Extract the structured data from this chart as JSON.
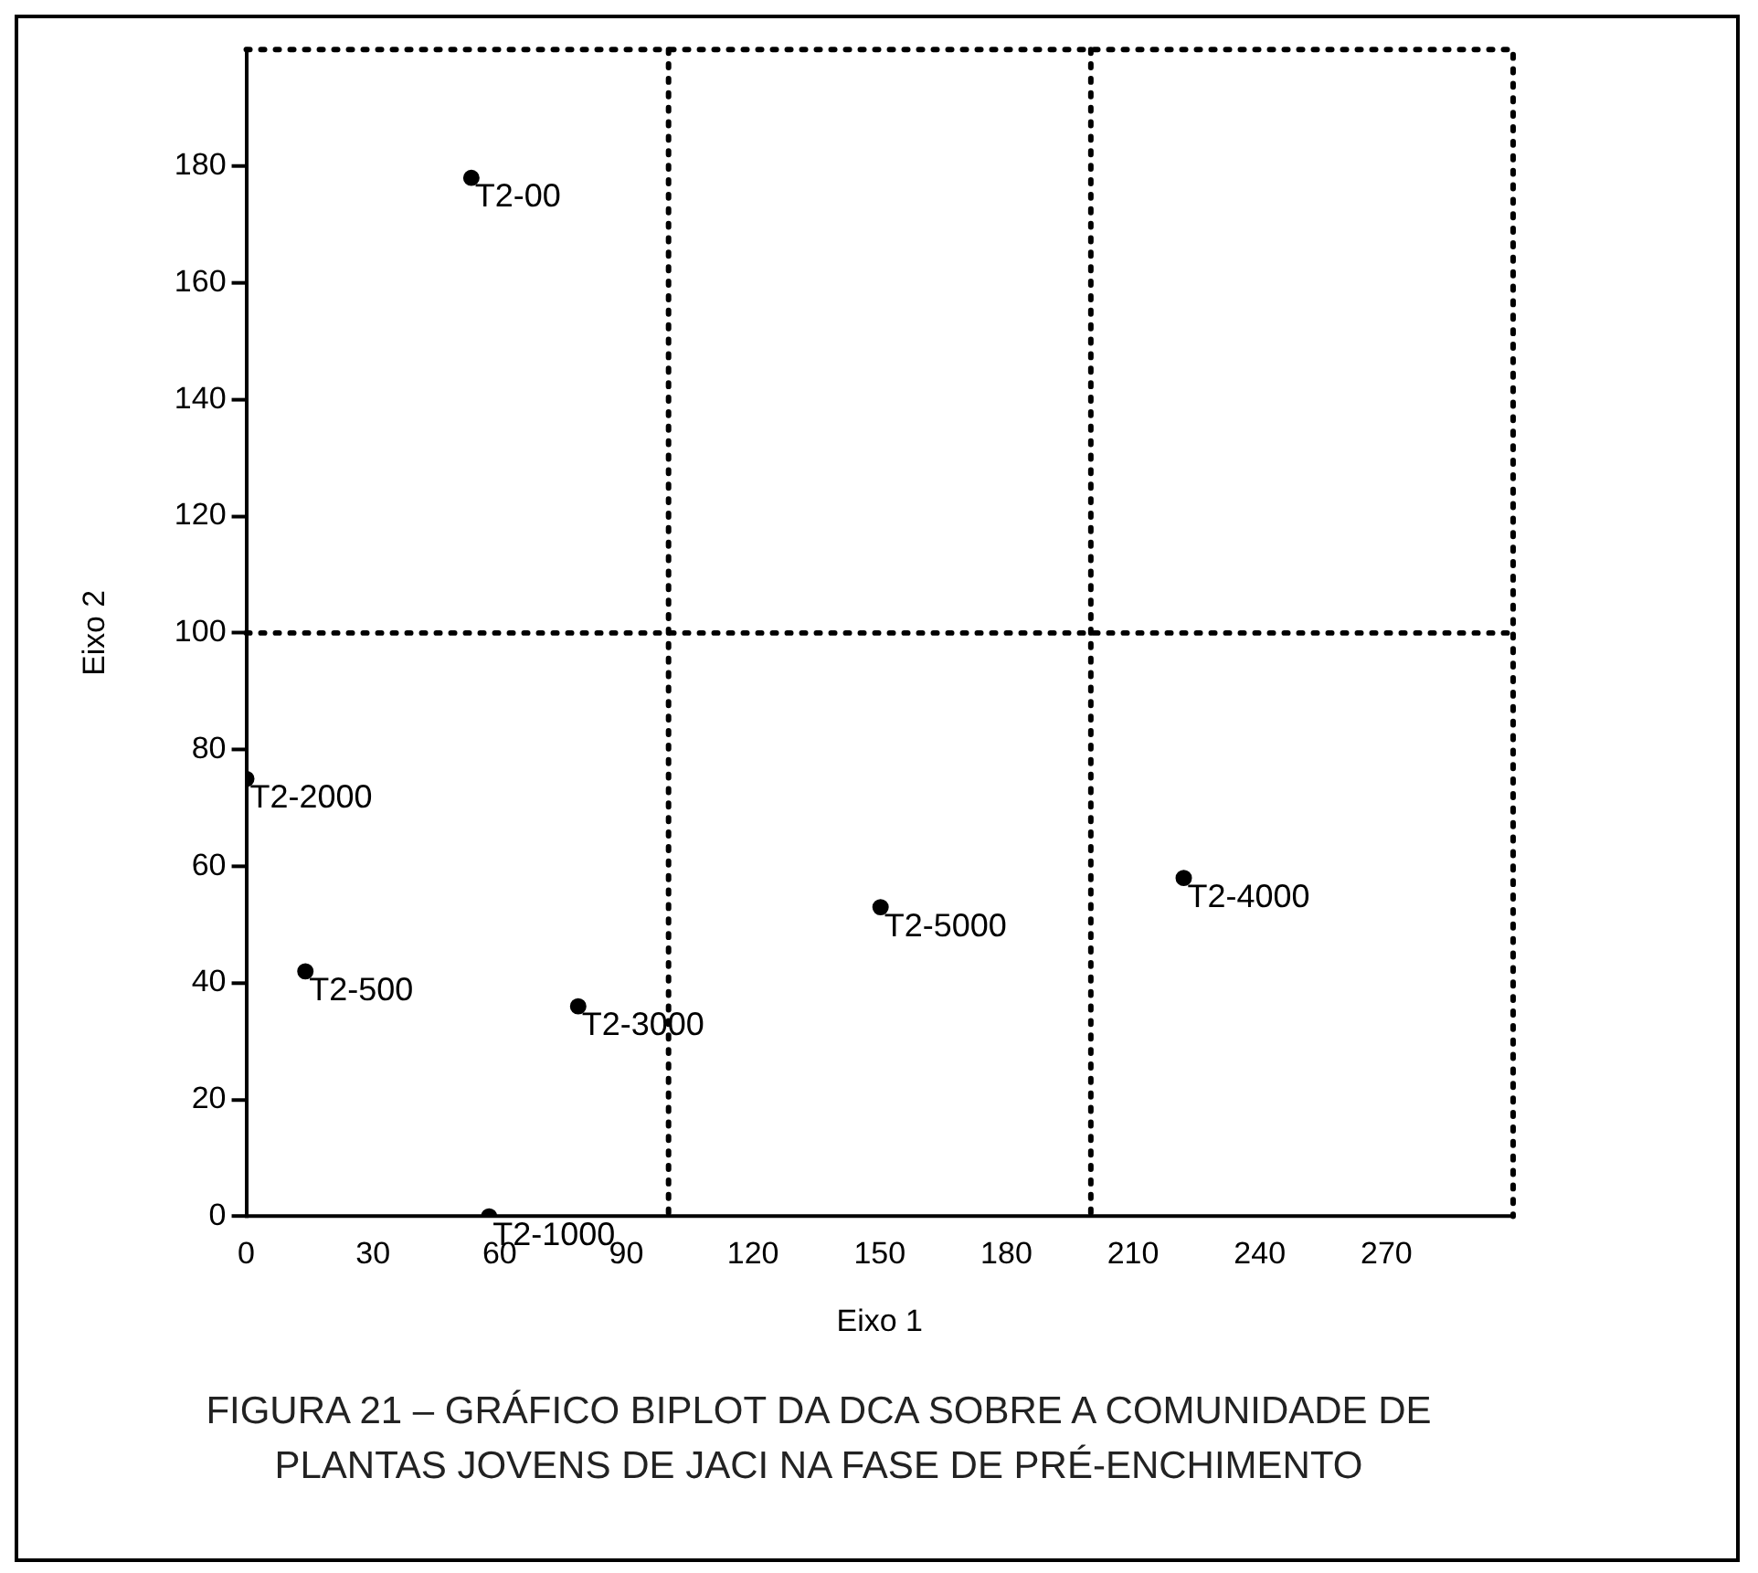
{
  "chart_data": {
    "type": "scatter",
    "xlabel": "Eixo 1",
    "ylabel": "Eixo 2",
    "x": [
      53.3,
      0,
      14,
      78.6,
      150.2,
      222,
      57.5
    ],
    "series": [
      {
        "color": "#000000",
        "values": [
          178,
          75,
          42,
          36,
          53,
          58,
          0
        ]
      }
    ],
    "xlim": [
      0,
      300
    ],
    "ylim": [
      0,
      200
    ],
    "xticks": [
      0,
      30,
      60,
      90,
      120,
      150,
      180,
      210,
      240,
      270
    ],
    "yticks": [
      0,
      20,
      40,
      60,
      80,
      100,
      120,
      140,
      160,
      180
    ],
    "grid": false,
    "legend": false,
    "marker": "circle",
    "ref_lines": [
      {
        "axis": "x",
        "value": 100,
        "line_style": "dotted",
        "color": "#000000"
      },
      {
        "axis": "x",
        "value": 200,
        "line_style": "dotted",
        "color": "#000000"
      },
      {
        "axis": "y",
        "value": 100,
        "line_style": "dotted",
        "color": "#000000"
      }
    ],
    "annotations": [
      {
        "text": "T2-00",
        "x": 53.3,
        "y": 178
      },
      {
        "text": "T2-2000",
        "x": 0,
        "y": 75
      },
      {
        "text": "T2-500",
        "x": 14,
        "y": 42
      },
      {
        "text": "T2-3000",
        "x": 78.6,
        "y": 36
      },
      {
        "text": "T2-5000",
        "x": 150.2,
        "y": 53
      },
      {
        "text": "T2-4000",
        "x": 222,
        "y": 58
      },
      {
        "text": "T2-1000",
        "x": 57.5,
        "y": 0
      },
      "FIGURA 21 – GRÁFICO BIPLOT DA DCA SOBRE A COMUNIDADE DE PLANTAS JOVENS DE JACI NA FASE DE PRÉ-ENCHIMENTO"
    ]
  }
}
